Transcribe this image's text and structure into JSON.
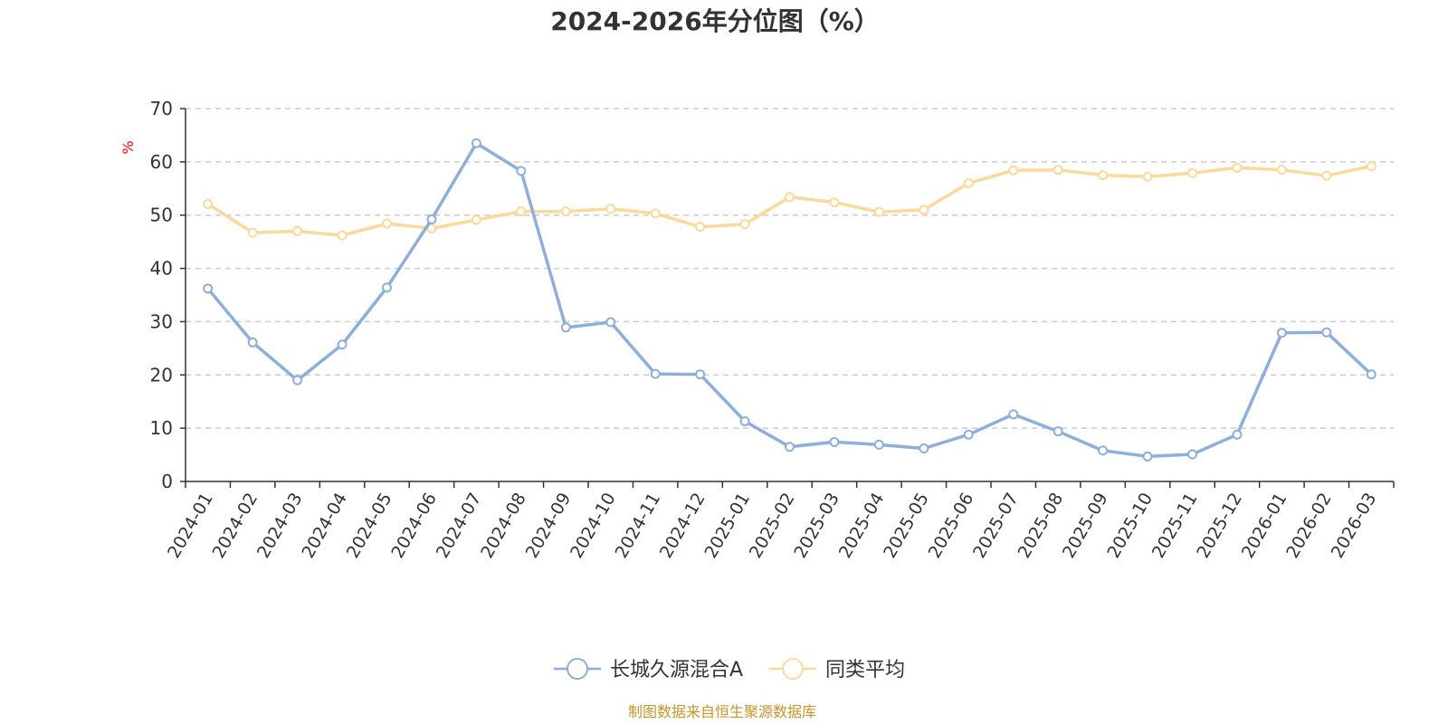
{
  "chart_data": {
    "type": "line",
    "title": "2024-2026年分位图（%）",
    "ylabel": "%",
    "xlabel": "",
    "ylim": [
      0,
      70
    ],
    "yticks": [
      0,
      10,
      20,
      30,
      40,
      50,
      60,
      70
    ],
    "grid": true,
    "legend_position": "bottom",
    "categories": [
      "2024-01",
      "2024-02",
      "2024-03",
      "2024-04",
      "2024-05",
      "2024-06",
      "2024-07",
      "2024-08",
      "2024-09",
      "2024-10",
      "2024-11",
      "2024-12",
      "2025-01",
      "2025-02",
      "2025-03",
      "2025-04",
      "2025-05",
      "2025-06",
      "2025-07",
      "2025-08",
      "2025-09",
      "2025-10",
      "2025-11",
      "2025-12",
      "2026-01",
      "2026-02",
      "2026-03"
    ],
    "series": [
      {
        "name": "长城久源混合A",
        "color": "#8eaedb",
        "values": [
          36.2,
          26.1,
          19.0,
          25.7,
          36.4,
          49.2,
          63.5,
          58.3,
          28.9,
          29.9,
          20.2,
          20.1,
          11.3,
          6.5,
          7.4,
          6.9,
          6.2,
          8.8,
          12.6,
          9.4,
          5.8,
          4.7,
          5.1,
          8.8,
          27.9,
          28.0,
          20.1
        ]
      },
      {
        "name": "同类平均",
        "color": "#fbd99a",
        "values": [
          52.1,
          46.7,
          47.0,
          46.2,
          48.4,
          47.5,
          49.1,
          50.7,
          50.7,
          51.2,
          50.3,
          47.8,
          48.3,
          53.4,
          52.4,
          50.6,
          51.0,
          56.0,
          58.4,
          58.5,
          57.5,
          57.2,
          57.9,
          58.9,
          58.5,
          57.4,
          59.2
        ]
      }
    ]
  },
  "source_note": "制图数据来自恒生聚源数据库",
  "colors": {
    "axis": "#333333",
    "grid": "#cccccc",
    "unit_label": "#ff0000",
    "source_note": "#c8942a"
  }
}
